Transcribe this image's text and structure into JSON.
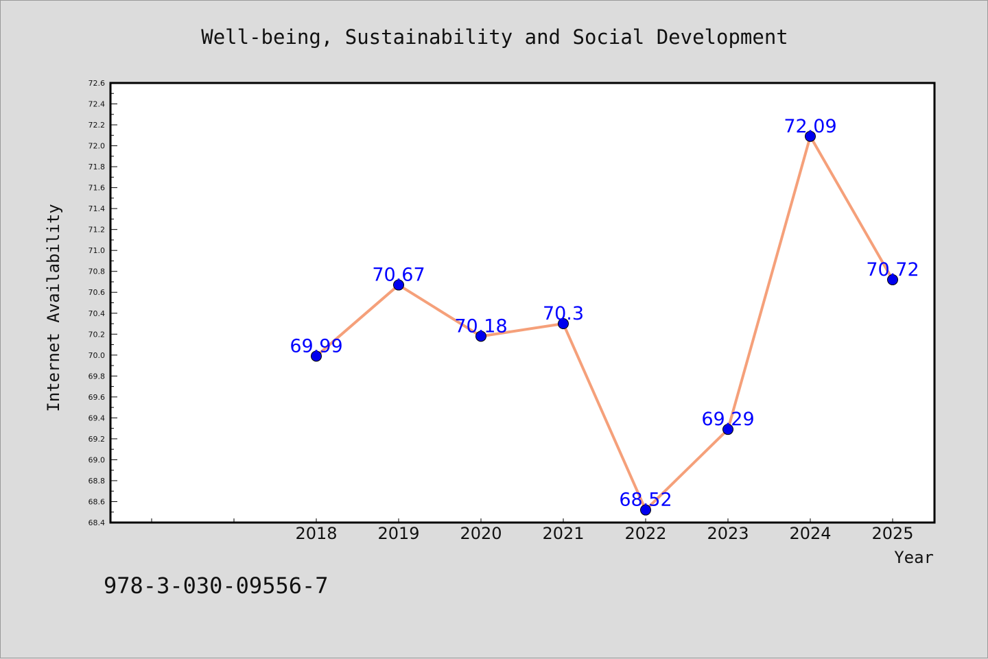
{
  "chart_data": {
    "type": "line",
    "title": "Well-being, Sustainability and Social Development",
    "xlabel": "Year",
    "ylabel": "Internet Availability",
    "categories": [
      "2018",
      "2019",
      "2020",
      "2021",
      "2022",
      "2023",
      "2024",
      "2025"
    ],
    "series": [
      {
        "values": [
          69.99,
          70.67,
          70.18,
          70.3,
          68.52,
          69.29,
          72.09,
          70.72
        ],
        "labels": [
          "69.99",
          "70.67",
          "70.18",
          "70.3",
          "68.52",
          "69.29",
          "72.09",
          "70.72"
        ]
      }
    ],
    "ylim": [
      68.4,
      72.6
    ],
    "yticks": [
      "68.4",
      "68.6",
      "68.8",
      "69.0",
      "69.2",
      "69.4",
      "69.6",
      "69.8",
      "70.0",
      "70.2",
      "70.4",
      "70.6",
      "70.8",
      "71.0",
      "71.2",
      "71.4",
      "71.6",
      "71.8",
      "72.0",
      "72.2",
      "72.4",
      "72.6"
    ],
    "x_slots_before_first_category": 2,
    "grid": false,
    "line_color": "#f5a07a",
    "marker_color": "#0000ee",
    "label_color": "#0000ff"
  },
  "footer": {
    "isbn": "978-3-030-09556-7"
  }
}
